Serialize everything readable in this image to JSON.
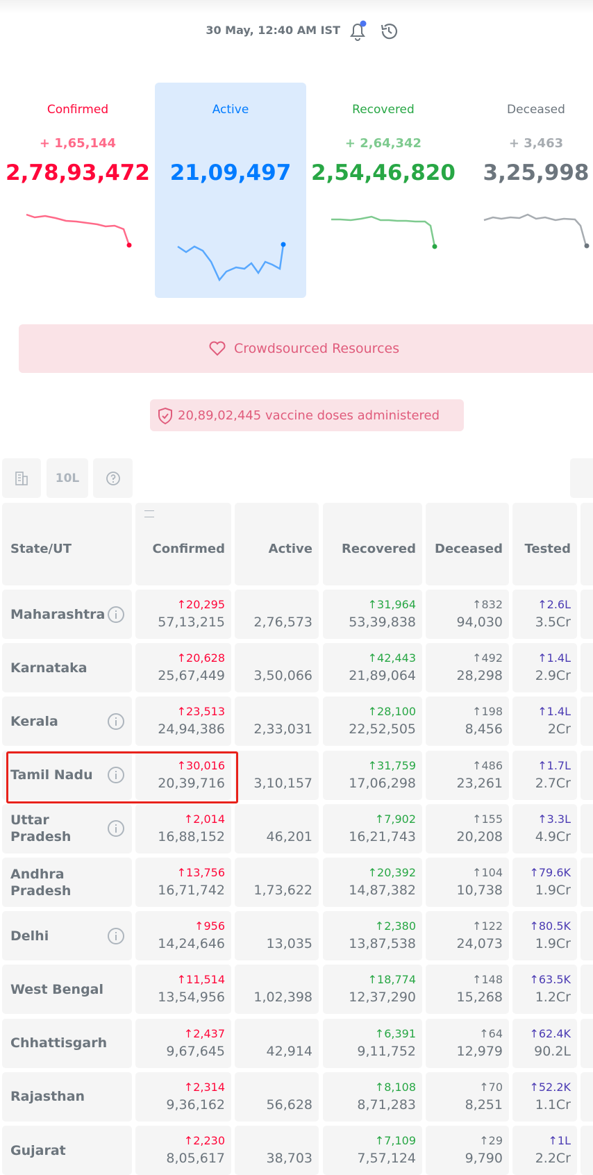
{
  "header": {
    "timestamp": "30 May, 12:40 AM IST"
  },
  "summary": [
    {
      "label": "Confirmed",
      "delta": "+ 1,65,144",
      "total": "2,78,93,472"
    },
    {
      "label": "Active",
      "total": "21,09,497"
    },
    {
      "label": "Recovered",
      "delta": "+ 2,64,342",
      "total": "2,54,46,820"
    },
    {
      "label": "Deceased",
      "delta": "+ 3,463",
      "total": "3,25,998"
    }
  ],
  "resources_button": "Crowdsourced Resources",
  "vaccine_banner": "20,89,02,445 vaccine doses administered",
  "toolbar": {
    "scale_toggle": "10L"
  },
  "table": {
    "columns": [
      "State/UT",
      "Confirmed",
      "Active",
      "Recovered",
      "Deceased",
      "Tested"
    ],
    "rows": [
      {
        "state": "Maharashtra",
        "info": true,
        "confirmed": {
          "delta": "↑20,295",
          "total": "57,13,215"
        },
        "active": {
          "total": "2,76,573"
        },
        "recovered": {
          "delta": "↑31,964",
          "total": "53,39,838"
        },
        "deceased": {
          "delta": "↑832",
          "total": "94,030"
        },
        "tested": {
          "delta": "↑2.6L",
          "total": "3.5Cr"
        }
      },
      {
        "state": "Karnataka",
        "info": false,
        "confirmed": {
          "delta": "↑20,628",
          "total": "25,67,449"
        },
        "active": {
          "total": "3,50,066"
        },
        "recovered": {
          "delta": "↑42,443",
          "total": "21,89,064"
        },
        "deceased": {
          "delta": "↑492",
          "total": "28,298"
        },
        "tested": {
          "delta": "↑1.4L",
          "total": "2.9Cr"
        }
      },
      {
        "state": "Kerala",
        "info": true,
        "confirmed": {
          "delta": "↑23,513",
          "total": "24,94,386"
        },
        "active": {
          "total": "2,33,031"
        },
        "recovered": {
          "delta": "↑28,100",
          "total": "22,52,505"
        },
        "deceased": {
          "delta": "↑198",
          "total": "8,456"
        },
        "tested": {
          "delta": "↑1.4L",
          "total": "2Cr"
        }
      },
      {
        "state": "Tamil Nadu",
        "info": true,
        "confirmed": {
          "delta": "↑30,016",
          "total": "20,39,716"
        },
        "active": {
          "total": "3,10,157"
        },
        "recovered": {
          "delta": "↑31,759",
          "total": "17,06,298"
        },
        "deceased": {
          "delta": "↑486",
          "total": "23,261"
        },
        "tested": {
          "delta": "↑1.7L",
          "total": "2.7Cr"
        }
      },
      {
        "state": "Uttar Pradesh",
        "info": true,
        "confirmed": {
          "delta": "↑2,014",
          "total": "16,88,152"
        },
        "active": {
          "total": "46,201"
        },
        "recovered": {
          "delta": "↑7,902",
          "total": "16,21,743"
        },
        "deceased": {
          "delta": "↑155",
          "total": "20,208"
        },
        "tested": {
          "delta": "↑3.3L",
          "total": "4.9Cr"
        }
      },
      {
        "state": "Andhra Pradesh",
        "info": false,
        "confirmed": {
          "delta": "↑13,756",
          "total": "16,71,742"
        },
        "active": {
          "total": "1,73,622"
        },
        "recovered": {
          "delta": "↑20,392",
          "total": "14,87,382"
        },
        "deceased": {
          "delta": "↑104",
          "total": "10,738"
        },
        "tested": {
          "delta": "↑79.6K",
          "total": "1.9Cr"
        }
      },
      {
        "state": "Delhi",
        "info": true,
        "confirmed": {
          "delta": "↑956",
          "total": "14,24,646"
        },
        "active": {
          "total": "13,035"
        },
        "recovered": {
          "delta": "↑2,380",
          "total": "13,87,538"
        },
        "deceased": {
          "delta": "↑122",
          "total": "24,073"
        },
        "tested": {
          "delta": "↑80.5K",
          "total": "1.9Cr"
        }
      },
      {
        "state": "West Bengal",
        "info": false,
        "confirmed": {
          "delta": "↑11,514",
          "total": "13,54,956"
        },
        "active": {
          "total": "1,02,398"
        },
        "recovered": {
          "delta": "↑18,774",
          "total": "12,37,290"
        },
        "deceased": {
          "delta": "↑148",
          "total": "15,268"
        },
        "tested": {
          "delta": "↑63.5K",
          "total": "1.2Cr"
        }
      },
      {
        "state": "Chhattisgarh",
        "info": false,
        "confirmed": {
          "delta": "↑2,437",
          "total": "9,67,645"
        },
        "active": {
          "total": "42,914"
        },
        "recovered": {
          "delta": "↑6,391",
          "total": "9,11,752"
        },
        "deceased": {
          "delta": "↑64",
          "total": "12,979"
        },
        "tested": {
          "delta": "↑62.4K",
          "total": "90.2L"
        }
      },
      {
        "state": "Rajasthan",
        "info": false,
        "confirmed": {
          "delta": "↑2,314",
          "total": "9,36,162"
        },
        "active": {
          "total": "56,628"
        },
        "recovered": {
          "delta": "↑8,108",
          "total": "8,71,283"
        },
        "deceased": {
          "delta": "↑70",
          "total": "8,251"
        },
        "tested": {
          "delta": "↑52.2K",
          "total": "1.1Cr"
        }
      },
      {
        "state": "Gujarat",
        "info": false,
        "confirmed": {
          "delta": "↑2,230",
          "total": "8,05,617"
        },
        "active": {
          "total": "38,703"
        },
        "recovered": {
          "delta": "↑7,109",
          "total": "7,57,124"
        },
        "deceased": {
          "delta": "↑29",
          "total": "9,790"
        },
        "tested": {
          "delta": "↑1L",
          "total": "2.2Cr"
        }
      }
    ]
  }
}
